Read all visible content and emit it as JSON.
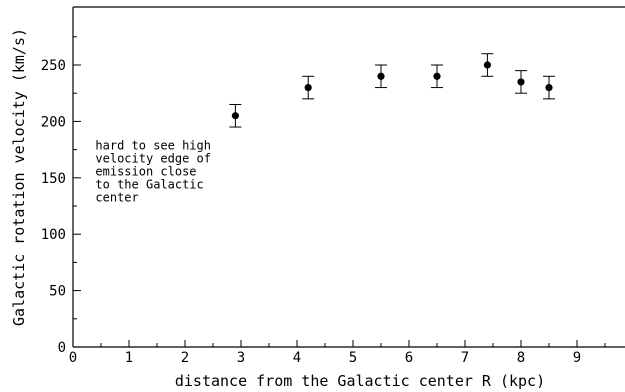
{
  "chart_data": {
    "type": "scatter",
    "title": "",
    "xlabel": "distance from the Galactic center R (kpc)",
    "ylabel": "Galactic rotation velocity (km/s)",
    "xlim": [
      0,
      10
    ],
    "ylim": [
      0,
      275
    ],
    "x_ticks": [
      0,
      1,
      2,
      3,
      4,
      5,
      6,
      7,
      8,
      9
    ],
    "y_ticks": [
      0,
      50,
      100,
      150,
      200,
      250
    ],
    "grid": false,
    "series": [
      {
        "points": [
          {
            "x": 2.9,
            "y": 205,
            "err": 10
          },
          {
            "x": 4.2,
            "y": 230,
            "err": 10
          },
          {
            "x": 5.5,
            "y": 240,
            "err": 10
          },
          {
            "x": 6.5,
            "y": 240,
            "err": 10
          },
          {
            "x": 7.4,
            "y": 250,
            "err": 10
          },
          {
            "x": 8.0,
            "y": 235,
            "err": 10
          },
          {
            "x": 8.5,
            "y": 230,
            "err": 10
          }
        ]
      }
    ],
    "annotation": {
      "lines": [
        "hard to see high",
        "velocity edge of",
        "emission close",
        "to the Galactic",
        "center"
      ],
      "x": 0.4,
      "y": 175
    },
    "colors": {
      "axis": "#000000",
      "points": "#000000"
    }
  }
}
